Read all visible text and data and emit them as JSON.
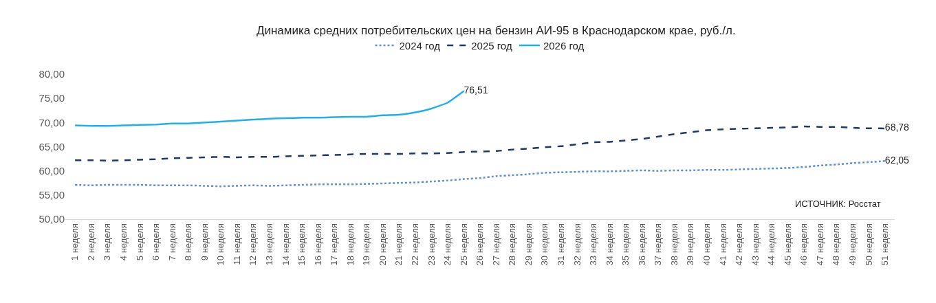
{
  "chart_data": {
    "type": "line",
    "title": "Динамика средних потребительских цен на бензин АИ-95 в Краснодарском крае, руб./л.",
    "categories": [
      "1 неделя",
      "2 неделя",
      "3 неделя",
      "4 неделя",
      "5 неделя",
      "6 неделя",
      "7 неделя",
      "8 неделя",
      "9 неделя",
      "10 неделя",
      "11 неделя",
      "12 неделя",
      "13 неделя",
      "14 неделя",
      "15 неделя",
      "16 неделя",
      "17 неделя",
      "18 неделя",
      "19 неделя",
      "20 неделя",
      "21 неделя",
      "22 неделя",
      "23 неделя",
      "24 неделя",
      "25 неделя",
      "26 неделя",
      "27 неделя",
      "28 неделя",
      "29 неделя",
      "30 неделя",
      "31 неделя",
      "32 неделя",
      "33 неделя",
      "34 неделя",
      "35 неделя",
      "36 неделя",
      "37 неделя",
      "38 неделя",
      "39 неделя",
      "40 неделя",
      "41 неделя",
      "42 неделя",
      "43 неделя",
      "44 неделя",
      "45 неделя",
      "46 неделя",
      "47 неделя",
      "48 неделя",
      "49 неделя",
      "50 неделя",
      "51 неделя"
    ],
    "series": [
      {
        "name": "2024 год",
        "color": "#5b8fd6",
        "line_style": "dotted",
        "values": [
          57.1,
          57.0,
          57.1,
          57.1,
          57.1,
          57.0,
          57.0,
          57.0,
          56.9,
          56.8,
          56.9,
          57.0,
          56.9,
          57.0,
          57.1,
          57.2,
          57.2,
          57.2,
          57.3,
          57.4,
          57.5,
          57.6,
          57.8,
          58.0,
          58.3,
          58.5,
          58.9,
          59.1,
          59.3,
          59.6,
          59.7,
          59.8,
          59.9,
          59.9,
          60.0,
          60.1,
          60.0,
          60.1,
          60.1,
          60.2,
          60.2,
          60.3,
          60.4,
          60.5,
          60.6,
          60.8,
          61.1,
          61.3,
          61.6,
          61.8,
          62.05
        ],
        "value_labels": [
          null,
          null,
          null,
          null,
          null,
          null,
          null,
          null,
          null,
          null,
          null,
          null,
          null,
          null,
          null,
          null,
          null,
          null,
          null,
          null,
          null,
          null,
          null,
          null,
          null,
          null,
          null,
          null,
          null,
          null,
          null,
          null,
          null,
          null,
          null,
          null,
          null,
          null,
          null,
          null,
          null,
          null,
          null,
          null,
          null,
          null,
          null,
          null,
          null,
          null,
          "62,05"
        ]
      },
      {
        "name": "2025 год",
        "color": "#1f3864",
        "line_style": "dashed",
        "values": [
          62.2,
          62.2,
          62.1,
          62.2,
          62.3,
          62.4,
          62.6,
          62.7,
          62.8,
          62.9,
          62.8,
          62.9,
          62.9,
          63.0,
          63.1,
          63.2,
          63.3,
          63.4,
          63.5,
          63.5,
          63.5,
          63.6,
          63.6,
          63.7,
          63.9,
          64.0,
          64.1,
          64.4,
          64.6,
          64.9,
          65.1,
          65.5,
          65.9,
          66.0,
          66.3,
          66.6,
          67.1,
          67.6,
          68.0,
          68.4,
          68.6,
          68.7,
          68.8,
          68.9,
          69.0,
          69.2,
          69.1,
          69.1,
          68.9,
          68.8,
          68.78
        ],
        "value_labels": [
          null,
          null,
          null,
          null,
          null,
          null,
          null,
          null,
          null,
          null,
          null,
          null,
          null,
          null,
          null,
          null,
          null,
          null,
          null,
          null,
          null,
          null,
          null,
          null,
          null,
          null,
          null,
          null,
          null,
          null,
          null,
          null,
          null,
          null,
          null,
          null,
          null,
          null,
          null,
          null,
          null,
          null,
          null,
          null,
          null,
          null,
          null,
          null,
          null,
          null,
          "68,78"
        ]
      },
      {
        "name": "2026 год",
        "color": "#1fb0ec",
        "line_style": "solid",
        "values": [
          69.4,
          69.3,
          69.3,
          69.4,
          69.5,
          69.6,
          69.8,
          69.8,
          70.0,
          70.2,
          70.4,
          70.6,
          70.8,
          70.9,
          71.0,
          71.0,
          71.1,
          71.2,
          71.2,
          71.5,
          71.6,
          72.1,
          72.9,
          74.1,
          76.51,
          null,
          null,
          null,
          null,
          null,
          null,
          null,
          null,
          null,
          null,
          null,
          null,
          null,
          null,
          null,
          null,
          null,
          null,
          null,
          null,
          null,
          null,
          null,
          null,
          null,
          null
        ],
        "value_labels": [
          null,
          null,
          null,
          null,
          null,
          null,
          null,
          null,
          null,
          null,
          null,
          null,
          null,
          null,
          null,
          null,
          null,
          null,
          null,
          null,
          null,
          null,
          null,
          null,
          "76,51",
          null,
          null,
          null,
          null,
          null,
          null,
          null,
          null,
          null,
          null,
          null,
          null,
          null,
          null,
          null,
          null,
          null,
          null,
          null,
          null,
          null,
          null,
          null,
          null,
          null,
          null
        ]
      }
    ],
    "ylim": [
      50,
      80
    ],
    "yticks": [
      {
        "value": 50,
        "label": "50,00"
      },
      {
        "value": 55,
        "label": "55,00"
      },
      {
        "value": 60,
        "label": "60,00"
      },
      {
        "value": 65,
        "label": "65,00"
      },
      {
        "value": 70,
        "label": "70,00"
      },
      {
        "value": 75,
        "label": "75,00"
      },
      {
        "value": 80,
        "label": "80,00"
      }
    ],
    "grid": false,
    "legend": "top",
    "marker": "none",
    "annotations": [
      "ИСТОЧНИК: Росстат"
    ]
  }
}
